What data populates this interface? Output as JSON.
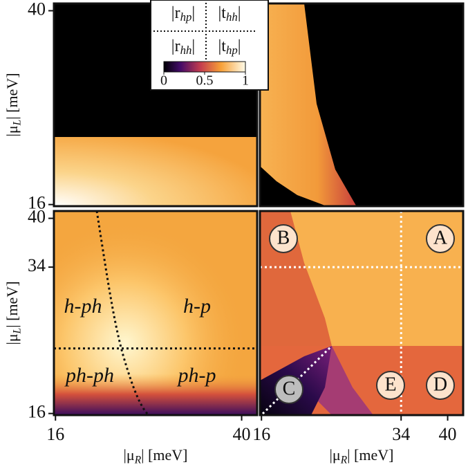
{
  "chart_data": [
    {
      "type": "heatmap",
      "xlim": [
        15.8,
        42
      ],
      "ylim": [
        15.8,
        40.9
      ],
      "yticks": [
        16,
        40
      ],
      "ylabel": {
        "text": "|μ",
        "subscript": "L",
        "rest": "| [meV]"
      },
      "legend": [
        {
          "text": "|r",
          "subscript": "hp",
          "rest": "|"
        },
        {
          "text": "|t",
          "subscript": "hh",
          "rest": "|"
        },
        {
          "text": "|r",
          "subscript": "hh",
          "rest": "|"
        },
        {
          "text": "|t",
          "subscript": "hp",
          "rest": "|"
        }
      ],
      "colorbar": {
        "lim": [
          0,
          1
        ],
        "ticks": [
          0,
          0.5,
          1
        ]
      }
    },
    {
      "type": "heatmap",
      "xlim": [
        15.8,
        42
      ],
      "ylim": [
        15.8,
        40.9
      ]
    },
    {
      "type": "heatmap",
      "xlim": [
        15.8,
        42
      ],
      "ylim": [
        15.8,
        40.9
      ],
      "xticks": [
        16,
        40
      ],
      "yticks": [
        16,
        34,
        40
      ],
      "ylabel": {
        "text": "|μ",
        "subscript": "L",
        "rest": "| [meV]"
      },
      "xlabel": {
        "text": "|μ",
        "subscript": "R",
        "rest": "| [meV]"
      },
      "hlines": [
        24
      ],
      "annotations": [
        "h-ph",
        "h-p",
        "ph-ph",
        "ph-p"
      ]
    },
    {
      "type": "heatmap",
      "xlim": [
        15.8,
        42
      ],
      "ylim": [
        15.8,
        40.9
      ],
      "xticks": [
        16,
        34,
        40
      ],
      "xlabel": {
        "text": "|μ",
        "subscript": "R",
        "rest": "| [meV]"
      },
      "hlines": [
        34
      ],
      "vlines": [
        34
      ],
      "markers": [
        "A",
        "B",
        "C",
        "D",
        "E"
      ]
    }
  ]
}
